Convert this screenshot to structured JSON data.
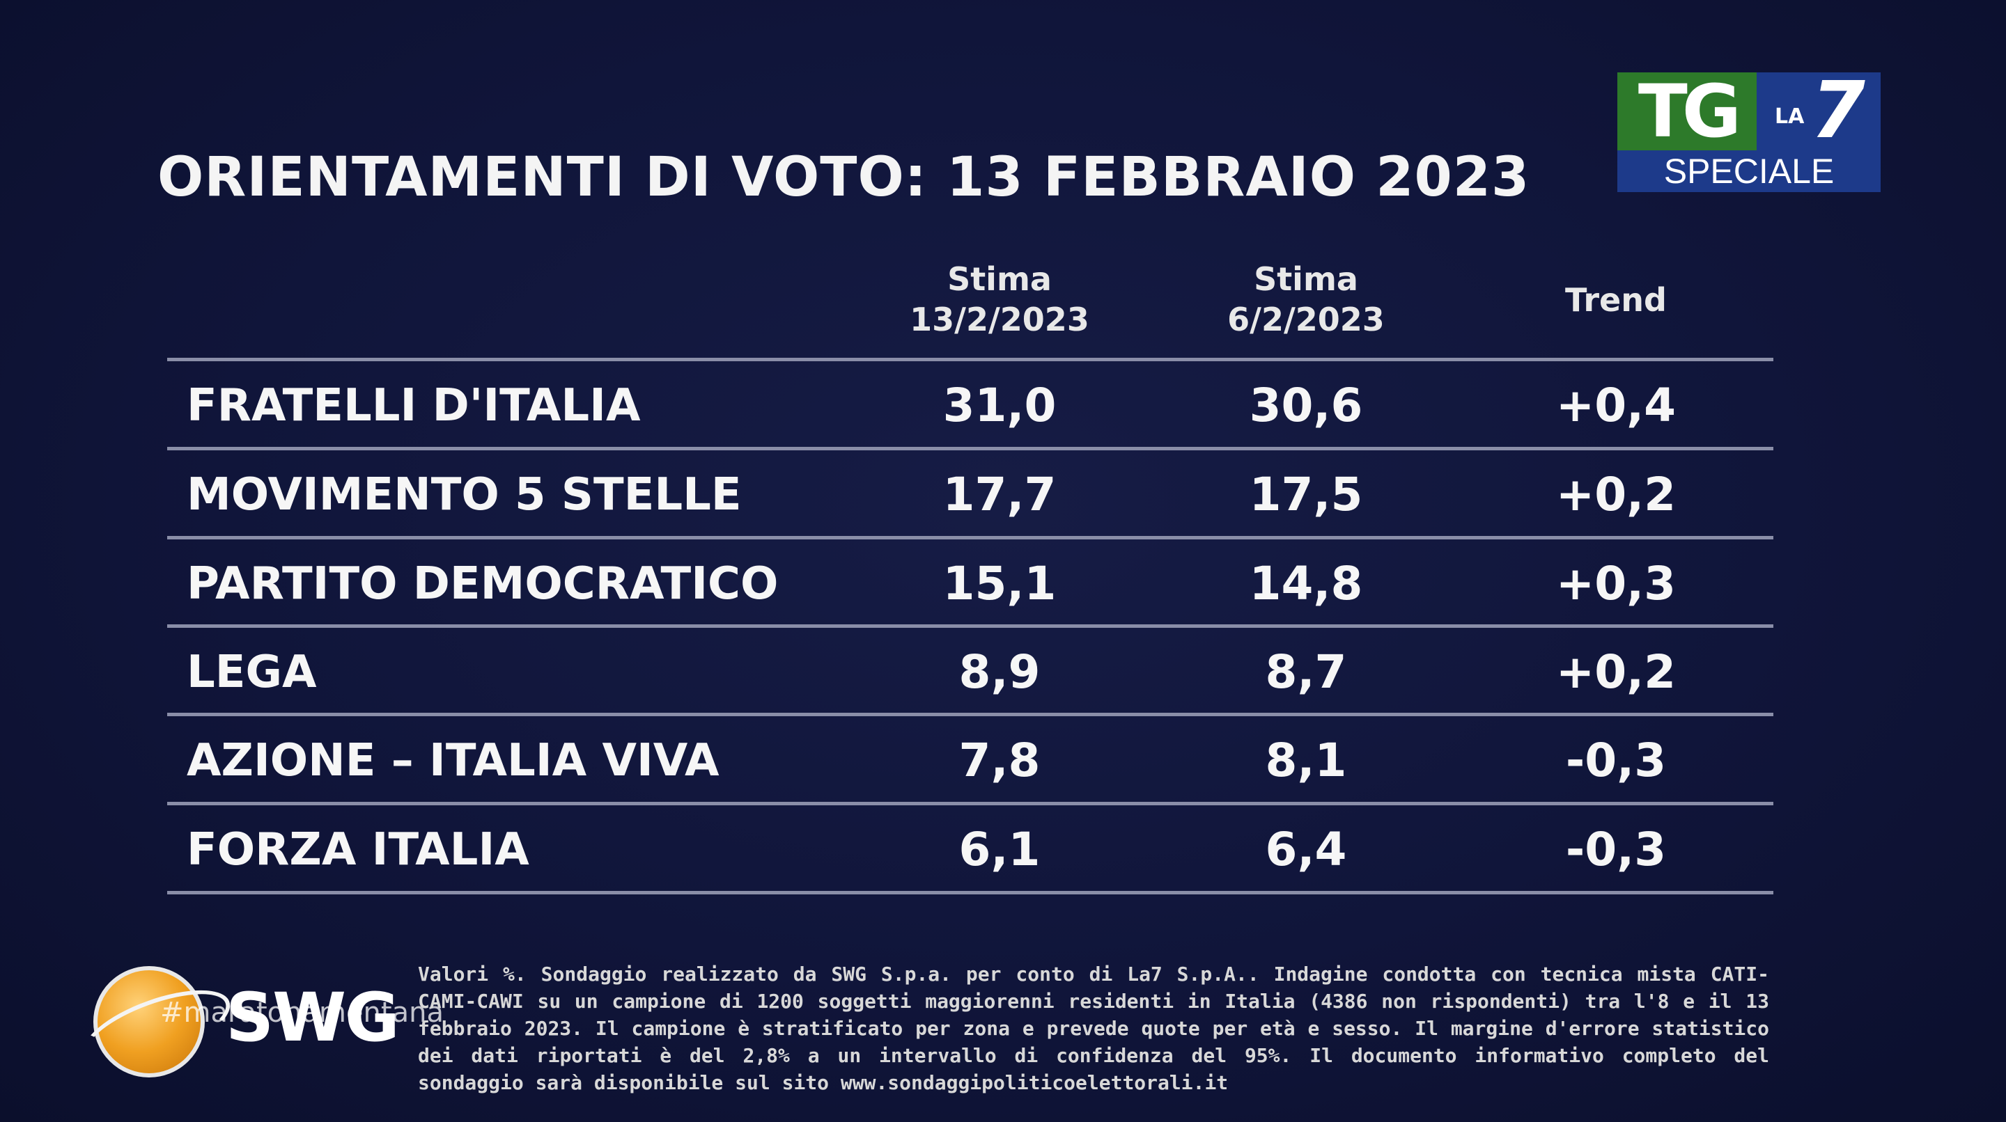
{
  "title": "ORIENTAMENTI DI VOTO: 13 FEBBRAIO 2023",
  "logo": {
    "tg": "TG",
    "la": "LA",
    "seven": "7",
    "speciale": "SPECIALE",
    "colors": {
      "green": "#2d7a2a",
      "blue": "#1d3a8a"
    }
  },
  "table": {
    "headers": {
      "current": {
        "line1": "Stima",
        "line2": "13/2/2023"
      },
      "previous": {
        "line1": "Stima",
        "line2": "6/2/2023"
      },
      "trend": "Trend"
    },
    "rows": [
      {
        "party": "FRATELLI D'ITALIA",
        "current": "31,0",
        "previous": "30,6",
        "trend": "+0,4"
      },
      {
        "party": "MOVIMENTO 5 STELLE",
        "current": "17,7",
        "previous": "17,5",
        "trend": "+0,2"
      },
      {
        "party": "PARTITO DEMOCRATICO",
        "current": "15,1",
        "previous": "14,8",
        "trend": "+0,3"
      },
      {
        "party": "LEGA",
        "current": "8,9",
        "previous": "8,7",
        "trend": "+0,2"
      },
      {
        "party": "AZIONE – ITALIA VIVA",
        "current": "7,8",
        "previous": "8,1",
        "trend": "-0,3"
      },
      {
        "party": "FORZA ITALIA",
        "current": "6,1",
        "previous": "6,4",
        "trend": "-0,3"
      }
    ]
  },
  "footer": {
    "brand": "SWG",
    "hashtag": "#maratonamentana",
    "note": "Valori %. Sondaggio realizzato da SWG S.p.a. per conto di La7 S.p.A.. Indagine condotta con tecnica mista CATI-CAMI-CAWI su un campione di 1200 soggetti maggiorenni residenti in Italia (4386 non rispondenti) tra l'8 e il 13 febbraio 2023. Il campione è stratificato per zona e prevede quote per età e sesso. Il margine d'errore statistico dei dati riportati è del 2,8% a un intervallo di confidenza del 95%. Il documento informativo completo del sondaggio sarà disponibile sul sito www.sondaggipoliticoelettorali.it"
  }
}
